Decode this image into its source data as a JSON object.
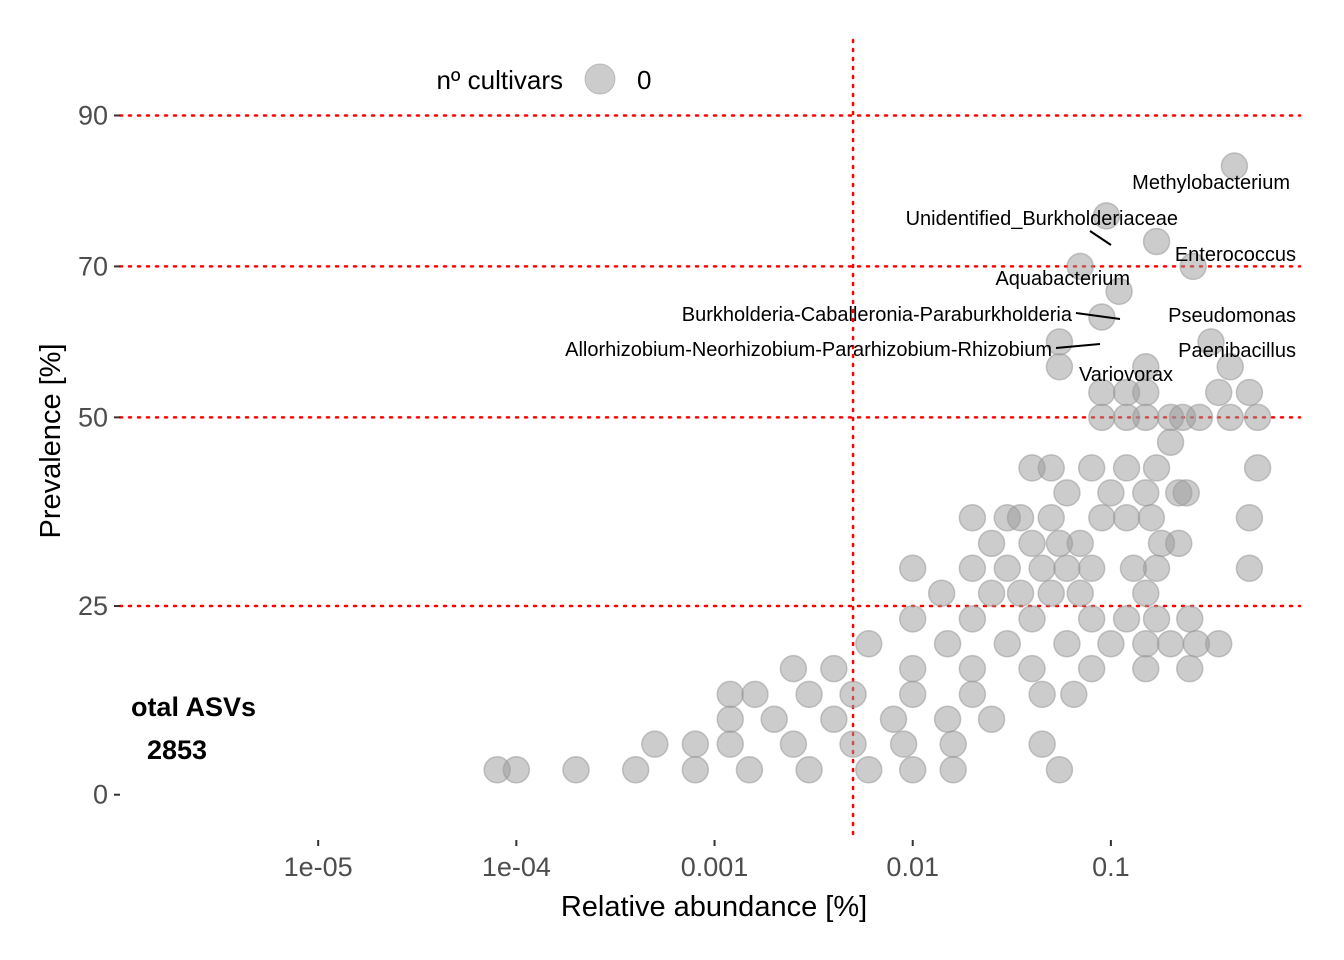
{
  "chart_data": {
    "type": "scatter",
    "title": "",
    "xlabel": "Relative abundance [%]",
    "ylabel": "Prevalence [%]",
    "x_scale": "log10",
    "xlim": [
      1e-06,
      0.9
    ],
    "ylim": [
      -6,
      100
    ],
    "x_ticks": [
      1e-05,
      0.0001,
      0.001,
      0.01,
      0.1
    ],
    "x_tick_labels": [
      "1e-05",
      "1e-04",
      "0.001",
      "0.01",
      "0.1"
    ],
    "y_ticks": [
      0,
      25,
      50,
      70,
      90
    ],
    "y_tick_labels": [
      "0",
      "25",
      "50",
      "70",
      "90"
    ],
    "grid": false,
    "reference_lines": {
      "vertical_x": 0.005,
      "horizontal_y": [
        25,
        50,
        70,
        90
      ],
      "color": "#ff0000",
      "style": "dotted"
    },
    "legend": {
      "title": "nº cultivars",
      "entries": [
        "0"
      ],
      "placement": "top"
    },
    "point_color": "#999999",
    "annotation": {
      "line1": "Total ASVs",
      "line2": "2853",
      "visible_line1": "otal ASVs",
      "visible_line2": "2853"
    },
    "labeled_points": [
      {
        "label": "Methylobacterium",
        "x": 0.42,
        "y": 83.3
      },
      {
        "label": "Unidentified_Burkholderiaceae",
        "x": 0.095,
        "y": 76.7
      },
      {
        "label": "Enterococcus",
        "x": 0.17,
        "y": 73.3
      },
      {
        "label": "Aquabacterium",
        "x": 0.07,
        "y": 70
      },
      {
        "label": "Burkholderia-Caballeronia-Paraburkholderia",
        "x": 0.11,
        "y": 66.7
      },
      {
        "label": "Pseudomonas",
        "x": 0.26,
        "y": 70
      },
      {
        "label": "Allorhizobium-Neorhizobium-Pararhizobium-Rhizobium",
        "x": 0.09,
        "y": 63.3
      },
      {
        "label": "Paenibacillus",
        "x": 0.32,
        "y": 60
      },
      {
        "label": "Variovorax",
        "x": 0.055,
        "y": 60
      }
    ],
    "points": [
      [
        0.055,
        56.7
      ],
      [
        0.15,
        56.7
      ],
      [
        0.4,
        56.7
      ],
      [
        0.09,
        53.3
      ],
      [
        0.12,
        53.3
      ],
      [
        0.15,
        53.3
      ],
      [
        0.35,
        53.3
      ],
      [
        0.5,
        53.3
      ],
      [
        0.09,
        50
      ],
      [
        0.12,
        50
      ],
      [
        0.15,
        50
      ],
      [
        0.2,
        50
      ],
      [
        0.23,
        50
      ],
      [
        0.28,
        50
      ],
      [
        0.4,
        50
      ],
      [
        0.55,
        50
      ],
      [
        0.2,
        46.7
      ],
      [
        0.55,
        43.3
      ],
      [
        0.04,
        43.3
      ],
      [
        0.05,
        43.3
      ],
      [
        0.08,
        43.3
      ],
      [
        0.12,
        43.3
      ],
      [
        0.17,
        43.3
      ],
      [
        0.06,
        40
      ],
      [
        0.1,
        40
      ],
      [
        0.15,
        40
      ],
      [
        0.22,
        40
      ],
      [
        0.24,
        40
      ],
      [
        0.02,
        36.7
      ],
      [
        0.03,
        36.7
      ],
      [
        0.035,
        36.7
      ],
      [
        0.05,
        36.7
      ],
      [
        0.09,
        36.7
      ],
      [
        0.12,
        36.7
      ],
      [
        0.16,
        36.7
      ],
      [
        0.5,
        36.7
      ],
      [
        0.025,
        33.3
      ],
      [
        0.04,
        33.3
      ],
      [
        0.055,
        33.3
      ],
      [
        0.07,
        33.3
      ],
      [
        0.18,
        33.3
      ],
      [
        0.22,
        33.3
      ],
      [
        0.01,
        30
      ],
      [
        0.02,
        30
      ],
      [
        0.03,
        30
      ],
      [
        0.045,
        30
      ],
      [
        0.06,
        30
      ],
      [
        0.08,
        30
      ],
      [
        0.13,
        30
      ],
      [
        0.17,
        30
      ],
      [
        0.5,
        30
      ],
      [
        0.014,
        26.7
      ],
      [
        0.025,
        26.7
      ],
      [
        0.035,
        26.7
      ],
      [
        0.05,
        26.7
      ],
      [
        0.07,
        26.7
      ],
      [
        0.15,
        26.7
      ],
      [
        0.01,
        23.3
      ],
      [
        0.02,
        23.3
      ],
      [
        0.04,
        23.3
      ],
      [
        0.08,
        23.3
      ],
      [
        0.12,
        23.3
      ],
      [
        0.17,
        23.3
      ],
      [
        0.25,
        23.3
      ],
      [
        0.006,
        20
      ],
      [
        0.015,
        20
      ],
      [
        0.03,
        20
      ],
      [
        0.06,
        20
      ],
      [
        0.1,
        20
      ],
      [
        0.15,
        20
      ],
      [
        0.2,
        20
      ],
      [
        0.27,
        20
      ],
      [
        0.35,
        20
      ],
      [
        0.0025,
        16.7
      ],
      [
        0.004,
        16.7
      ],
      [
        0.01,
        16.7
      ],
      [
        0.02,
        16.7
      ],
      [
        0.04,
        16.7
      ],
      [
        0.08,
        16.7
      ],
      [
        0.15,
        16.7
      ],
      [
        0.25,
        16.7
      ],
      [
        0.0012,
        13.3
      ],
      [
        0.0016,
        13.3
      ],
      [
        0.003,
        13.3
      ],
      [
        0.005,
        13.3
      ],
      [
        0.01,
        13.3
      ],
      [
        0.02,
        13.3
      ],
      [
        0.045,
        13.3
      ],
      [
        0.065,
        13.3
      ],
      [
        0.0012,
        10
      ],
      [
        0.002,
        10
      ],
      [
        0.004,
        10
      ],
      [
        0.008,
        10
      ],
      [
        0.015,
        10
      ],
      [
        0.025,
        10
      ],
      [
        0.0005,
        6.7
      ],
      [
        0.0008,
        6.7
      ],
      [
        0.0012,
        6.7
      ],
      [
        0.0025,
        6.7
      ],
      [
        0.005,
        6.7
      ],
      [
        0.009,
        6.7
      ],
      [
        0.016,
        6.7
      ],
      [
        0.045,
        6.7
      ],
      [
        8e-05,
        3.3
      ],
      [
        0.0001,
        3.3
      ],
      [
        0.0002,
        3.3
      ],
      [
        0.0004,
        3.3
      ],
      [
        0.0008,
        3.3
      ],
      [
        0.0015,
        3.3
      ],
      [
        0.003,
        3.3
      ],
      [
        0.006,
        3.3
      ],
      [
        0.01,
        3.3
      ],
      [
        0.016,
        3.3
      ],
      [
        0.055,
        3.3
      ]
    ]
  }
}
